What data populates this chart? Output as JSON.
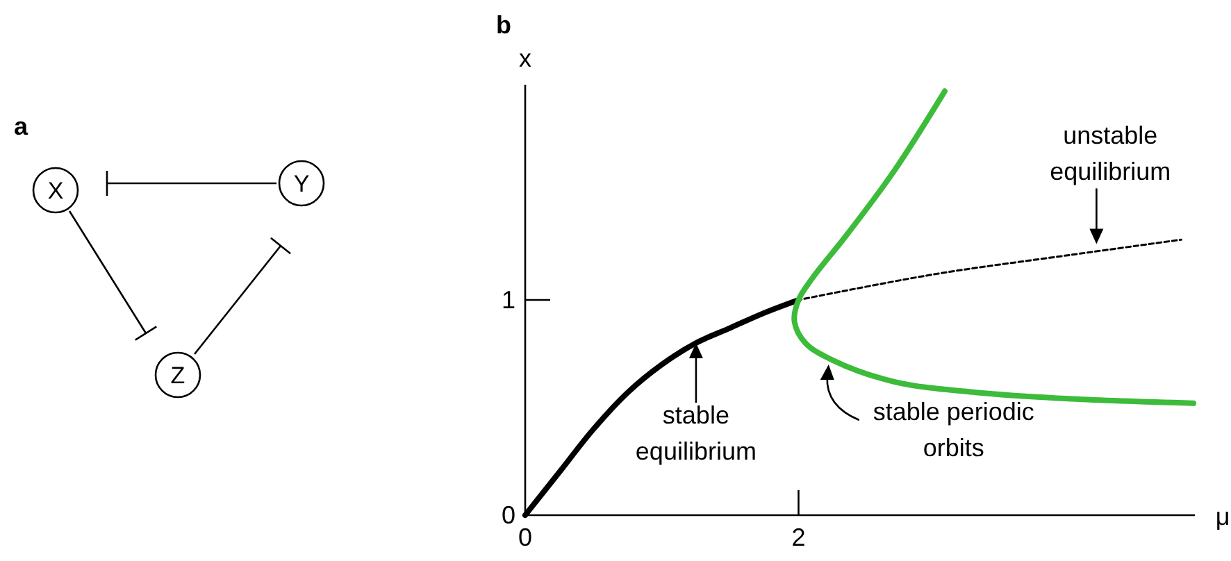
{
  "chart_data": [
    {
      "type": "other",
      "title": "a",
      "annotations": [
        "X",
        "Y",
        "Z"
      ]
    },
    {
      "type": "line",
      "title": "b",
      "xlabel": "μ",
      "ylabel": "x",
      "xlim": [
        0,
        4.9
      ],
      "ylim": [
        0,
        2
      ],
      "xticks": [
        0,
        2
      ],
      "yticks": [
        0,
        1
      ],
      "series": [
        {
          "color": "#000000",
          "line_style": "solid",
          "x": [
            0,
            0.25,
            0.5,
            0.75,
            1,
            1.25,
            1.5,
            1.75,
            2
          ],
          "values": [
            0,
            0.2,
            0.4,
            0.57,
            0.7,
            0.8,
            0.87,
            0.94,
            1
          ]
        },
        {
          "color": "#000000",
          "line_style": "dashed",
          "x": [
            2,
            3,
            4,
            4.8
          ],
          "values": [
            1,
            1.12,
            1.21,
            1.28
          ]
        },
        {
          "color": "#3dbb3a",
          "line_style": "solid",
          "x": [
            3.07,
            2.7,
            2.35,
            2.1,
            2,
            1.97,
            2.05,
            2.25,
            2.7,
            3.3,
            4,
            4.89
          ],
          "values": [
            1.97,
            1.6,
            1.3,
            1.1,
            1,
            0.9,
            0.8,
            0.72,
            0.62,
            0.57,
            0.54,
            0.52
          ]
        }
      ],
      "annotations": [
        {
          "text": "stable\nequilibrium",
          "x": 1.25,
          "y": 0.8
        },
        {
          "text": "unstable\nequilibrium",
          "x": 4.18,
          "y": 1.26
        },
        {
          "text": "stable periodic\norbits",
          "x": 2.22,
          "y": 0.7
        }
      ]
    }
  ]
}
